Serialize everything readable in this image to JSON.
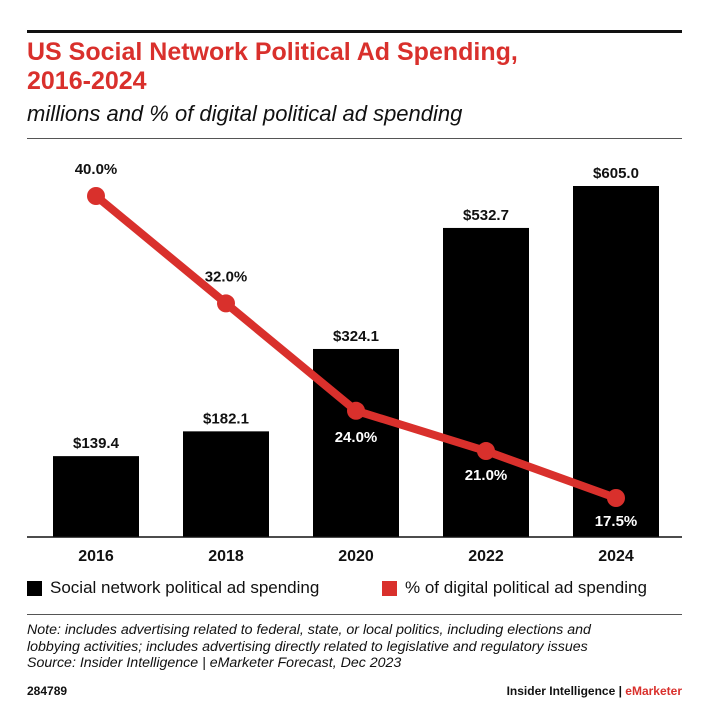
{
  "title_lines": [
    "US Social Network Political Ad Spending,",
    "2016-2024"
  ],
  "subtitle": "millions and % of digital political ad spending",
  "colors": {
    "accent": "#d9302c",
    "bars": "#000000",
    "text": "#111111"
  },
  "chart_data": {
    "type": "bar",
    "categories": [
      "2016",
      "2018",
      "2020",
      "2022",
      "2024"
    ],
    "series": [
      {
        "name": "Social network political ad spending",
        "type": "bar",
        "values": [
          139.4,
          182.1,
          324.1,
          532.7,
          605.0
        ],
        "labels": [
          "$139.4",
          "$182.1",
          "$324.1",
          "$532.7",
          "$605.0"
        ]
      },
      {
        "name": "% of digital political ad spending",
        "type": "line",
        "values": [
          40.0,
          32.0,
          24.0,
          21.0,
          17.5
        ],
        "labels": [
          "40.0%",
          "32.0%",
          "24.0%",
          "21.0%",
          "17.5%"
        ]
      }
    ],
    "bar_axis_max": 605.0,
    "line_axis_range": [
      0,
      45
    ],
    "grid": false,
    "legend_position": "bottom"
  },
  "legend": {
    "bars_label": "Social network political ad spending",
    "line_label": "% of digital political ad spending"
  },
  "notes": [
    "Note: includes advertising related to federal, state, or local politics, including elections and",
    "lobbying activities; includes advertising directly related to legislative and regulatory issues",
    "Source: Insider Intelligence | eMarketer Forecast, Dec 2023"
  ],
  "footer": {
    "chart_id": "284789",
    "brand_prefix": "Insider Intelligence | ",
    "brand_suffix": "eMarketer"
  }
}
